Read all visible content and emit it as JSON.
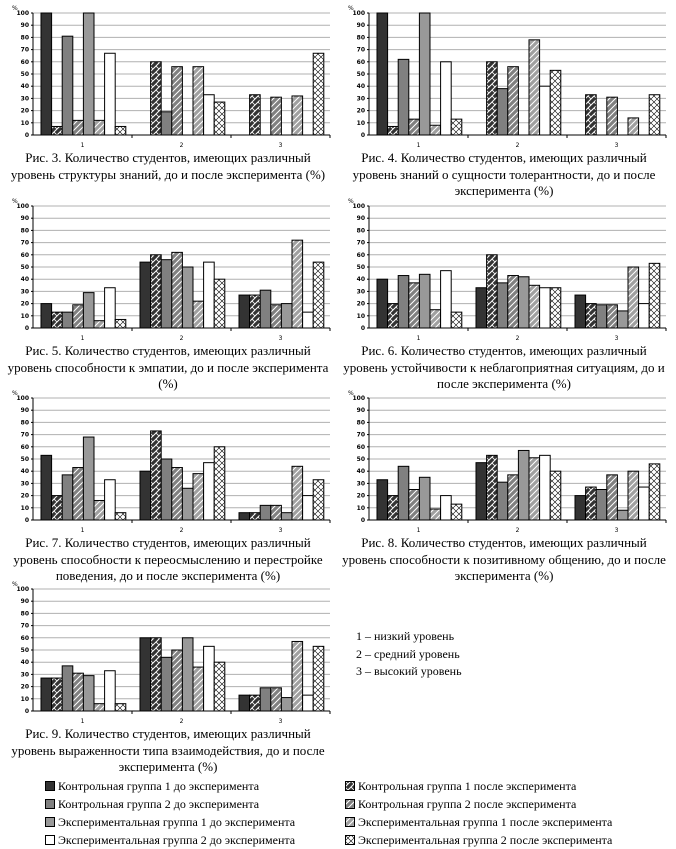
{
  "series_labels": [
    "Контрольная группа 1 до эксперимента",
    "Контрольная группа 1 после эксперимента",
    "Контрольная группа 2 до эксперимента",
    "Контрольная группа 2 после эксперимента",
    "Экспериментальная группа 1 до эксперимента",
    "Экспериментальная группа 1 после эксперимента",
    "Экспериментальная группа 2 до эксперимента",
    "Экспериментальная группа 2 после эксперимента"
  ],
  "series_colors": [
    "#333333",
    "#333333",
    "#808080",
    "#808080",
    "#999999",
    "#999999",
    "#ffffff",
    "#ffffff"
  ],
  "series_hatched": [
    false,
    true,
    false,
    true,
    false,
    true,
    false,
    true
  ],
  "key": {
    "items": [
      "1 – низкий уровень",
      "2 – средний уровень",
      "3 – высокий уровень"
    ]
  },
  "chart_data": [
    {
      "type": "bar",
      "title": "Рис. 3. Количество студентов, имеющих различный уровень структуры знаний, до и после эксперимента (%)",
      "ylabel": "%",
      "ylim": [
        0,
        100
      ],
      "yticks": [
        "0",
        "10",
        "20",
        "30",
        "40",
        "50",
        "60",
        "70",
        "80",
        "90",
        "100"
      ],
      "categories": [
        "1",
        "2",
        "3"
      ],
      "values": [
        [
          100,
          7,
          81,
          12,
          100,
          12,
          67,
          7
        ],
        [
          0,
          60,
          19,
          56,
          0,
          56,
          33,
          27
        ],
        [
          0,
          33,
          0,
          31,
          0,
          32,
          0,
          67
        ]
      ]
    },
    {
      "type": "bar",
      "title": "Рис. 4. Количество студентов, имеющих различный уровень знаний о сущности толерантности, до и после эксперимента (%)",
      "ylabel": "%",
      "ylim": [
        0,
        100
      ],
      "yticks": [
        "0",
        "10",
        "20",
        "30",
        "40",
        "50",
        "60",
        "70",
        "80",
        "90",
        "100"
      ],
      "categories": [
        "1",
        "2",
        "3"
      ],
      "values": [
        [
          100,
          7,
          62,
          13,
          100,
          8,
          60,
          13
        ],
        [
          0,
          60,
          38,
          56,
          0,
          78,
          40,
          53
        ],
        [
          0,
          33,
          0,
          31,
          0,
          14,
          0,
          33
        ]
      ]
    },
    {
      "type": "bar",
      "title": "Рис. 5. Количество студентов, имеющих различный уровень способности к эмпатии, до и после эксперимента (%)",
      "ylabel": "%",
      "ylim": [
        0,
        100
      ],
      "yticks": [
        "0",
        "10",
        "20",
        "30",
        "40",
        "50",
        "60",
        "70",
        "80",
        "90",
        "100"
      ],
      "categories": [
        "1",
        "2",
        "3"
      ],
      "values": [
        [
          20,
          13,
          13,
          19,
          29,
          6,
          33,
          7
        ],
        [
          54,
          60,
          56,
          62,
          50,
          22,
          54,
          40
        ],
        [
          27,
          27,
          31,
          19,
          20,
          72,
          13,
          54
        ]
      ]
    },
    {
      "type": "bar",
      "title": "Рис. 6. Количество студентов, имеющих различный уровень устойчивости к неблагоприятная ситуациям, до и после эксперимента (%)",
      "ylabel": "%",
      "ylim": [
        0,
        100
      ],
      "yticks": [
        "0",
        "10",
        "20",
        "30",
        "40",
        "50",
        "60",
        "70",
        "80",
        "90",
        "100"
      ],
      "categories": [
        "1",
        "2",
        "3"
      ],
      "values": [
        [
          40,
          20,
          43,
          37,
          44,
          15,
          47,
          13
        ],
        [
          33,
          60,
          37,
          43,
          42,
          35,
          33,
          33
        ],
        [
          27,
          20,
          19,
          19,
          14,
          50,
          20,
          53
        ]
      ]
    },
    {
      "type": "bar",
      "title": "Рис. 7. Количество студентов, имеющих различный уровень способности к переосмыслению и перестройке поведения, до и после эксперимента (%)",
      "ylabel": "%",
      "ylim": [
        0,
        100
      ],
      "yticks": [
        "0",
        "10",
        "20",
        "30",
        "40",
        "50",
        "60",
        "70",
        "80",
        "90",
        "100"
      ],
      "categories": [
        "1",
        "2",
        "3"
      ],
      "values": [
        [
          53,
          20,
          37,
          43,
          68,
          16,
          33,
          6
        ],
        [
          40,
          73,
          50,
          43,
          26,
          38,
          47,
          60
        ],
        [
          6,
          6,
          12,
          12,
          6,
          44,
          20,
          33
        ]
      ]
    },
    {
      "type": "bar",
      "title": "Рис. 8. Количество студентов, имеющих различный уровень способности к позитивному общению, до и после эксперимента (%)",
      "ylabel": "%",
      "ylim": [
        0,
        100
      ],
      "yticks": [
        "0",
        "10",
        "20",
        "30",
        "40",
        "50",
        "60",
        "70",
        "80",
        "90",
        "100"
      ],
      "categories": [
        "1",
        "2",
        "3"
      ],
      "values": [
        [
          33,
          20,
          44,
          25,
          35,
          9,
          20,
          13
        ],
        [
          47,
          53,
          31,
          37,
          57,
          51,
          53,
          40
        ],
        [
          20,
          27,
          25,
          37,
          8,
          40,
          27,
          46
        ]
      ]
    },
    {
      "type": "bar",
      "title": "Рис. 9. Количество студентов, имеющих различный уровень выраженности типа взаимодействия, до и после эксперимента (%)",
      "ylabel": "%",
      "ylim": [
        0,
        100
      ],
      "yticks": [
        "0",
        "10",
        "20",
        "30",
        "40",
        "50",
        "60",
        "70",
        "80",
        "90",
        "100"
      ],
      "categories": [
        "1",
        "2",
        "3"
      ],
      "values": [
        [
          27,
          27,
          37,
          31,
          29,
          6,
          33,
          6
        ],
        [
          60,
          60,
          44,
          50,
          60,
          36,
          53,
          40
        ],
        [
          13,
          13,
          19,
          19,
          11,
          57,
          13,
          53
        ]
      ]
    }
  ]
}
